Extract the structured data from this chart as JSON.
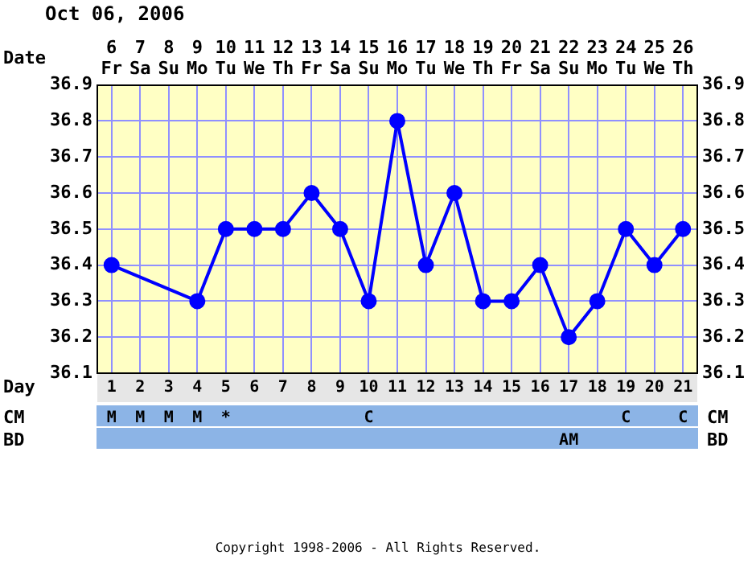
{
  "chart_data": [
    {
      "type": "line",
      "title": "Oct 06, 2006",
      "xlabel": "Date",
      "x2label": "Day",
      "categories": [
        "6\nFr",
        "7\nSa",
        "8\nSu",
        "9\nMo",
        "10\nTu",
        "11\nWe",
        "12\nTh",
        "13\nFr",
        "14\nSa",
        "15\nSu",
        "16\nMo",
        "17\nTu",
        "18\nWe",
        "19\nTh",
        "20\nFr",
        "21\nSa",
        "22\nSu",
        "23\nMo",
        "24\nTu",
        "25\nWe",
        "26\nTh"
      ],
      "series": [
        {
          "color": "#0000ff",
          "values": [
            36.4,
            null,
            null,
            36.3,
            36.5,
            36.5,
            36.5,
            36.6,
            36.5,
            36.3,
            36.8,
            36.4,
            36.6,
            36.3,
            36.3,
            36.4,
            36.2,
            36.3,
            36.5,
            36.4,
            36.5
          ]
        }
      ],
      "ylim": [
        36.1,
        36.9
      ],
      "yticks": [
        36.1,
        36.2,
        36.3,
        36.4,
        36.5,
        36.6,
        36.7,
        36.8,
        36.9
      ],
      "y2lim": [
        36.1,
        36.9
      ],
      "y2ticks": [
        36.1,
        36.2,
        36.3,
        36.4,
        36.5,
        36.6,
        36.7,
        36.8,
        36.9
      ],
      "x2lim": [
        0.5,
        21.5
      ],
      "x2ticks": [
        1,
        2,
        3,
        4,
        5,
        6,
        7,
        8,
        9,
        10,
        11,
        12,
        13,
        14,
        15,
        16,
        17,
        18,
        19,
        20,
        21
      ],
      "grid": true,
      "marker": "circle"
    },
    {
      "type": "heatmap",
      "categories": [
        null,
        null,
        null,
        null,
        null,
        null,
        null,
        null,
        null,
        null,
        null,
        null,
        null,
        null,
        null,
        null,
        null,
        null,
        null,
        null,
        null
      ],
      "y_categories": [
        "CM",
        "BD"
      ],
      "y2_categories": [
        "CM",
        "BD"
      ],
      "cells": [
        [
          null,
          null,
          null,
          null,
          null,
          null,
          null,
          null,
          null,
          null,
          null,
          null,
          null,
          null,
          null,
          null,
          null,
          null,
          null,
          null,
          null
        ],
        [
          null,
          null,
          null,
          null,
          null,
          null,
          null,
          null,
          null,
          null,
          null,
          null,
          null,
          null,
          null,
          null,
          null,
          null,
          null,
          null,
          null
        ]
      ],
      "cell_labels": [
        [
          "M",
          "M",
          "M",
          "M",
          "*",
          null,
          null,
          null,
          null,
          "C",
          null,
          null,
          null,
          null,
          null,
          null,
          null,
          null,
          "C",
          null,
          "C"
        ],
        [
          null,
          null,
          null,
          null,
          null,
          null,
          null,
          null,
          null,
          null,
          null,
          null,
          null,
          null,
          null,
          null,
          "AM",
          null,
          null,
          null,
          null
        ]
      ],
      "annotations": [
        "Copyright 1998-2006 - All Rights Reserved."
      ]
    }
  ]
}
